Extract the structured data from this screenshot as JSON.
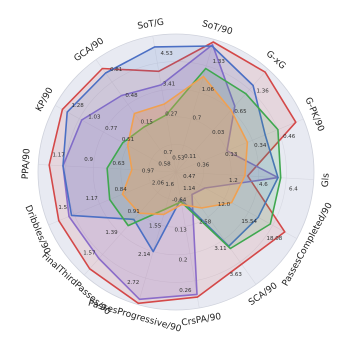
{
  "chart_data": {
    "type": "radar",
    "axes": [
      "SoT/90",
      "G-xG",
      "G-PK/90",
      "Gls",
      "PassesCompleted/90",
      "SCA/90",
      "CrsPA/90",
      "PassesProgressive/90",
      "FinalThirdPasses/90",
      "Dribbles/90",
      "PPA/90",
      "KP/90",
      "GCA/90",
      "SoT/G"
    ],
    "rmax": 5,
    "grid": true,
    "axis_ticks": [
      [
        "0.7",
        "1.06",
        "1.33"
      ],
      [
        "0.03",
        "0.65",
        "1.36"
      ],
      [
        "0.13",
        "0.34",
        "0.46"
      ],
      [
        "1.2",
        "4.6",
        "6.4"
      ],
      [
        "12.0",
        "15.54",
        "18.08"
      ],
      [
        "2.58",
        "3.11",
        "3.63"
      ],
      [
        "0.13",
        "0.2",
        "0.26"
      ],
      [
        "1.55",
        "2.14",
        "2.72"
      ],
      [
        "0.91",
        "1.39",
        "1.57"
      ],
      [
        "0.84",
        "1.17",
        "1.5"
      ],
      [
        "0.63",
        "0.9",
        "1.17"
      ],
      [
        "0.51",
        "0.77",
        "1.03",
        "1.28"
      ],
      [
        "0.15",
        "0.48",
        "0.81"
      ],
      [
        "0.27",
        "3.41",
        "4.53"
      ]
    ],
    "center_labels": [
      "0.53",
      "0.11",
      "0.36",
      "0.47",
      "1.14",
      "-0.64",
      "1.6",
      "2.06",
      "0.97",
      "0.58",
      "0.7"
    ],
    "series": [
      {
        "values": [
          4.9,
          4.85,
          4.7,
          2.6,
          4.5,
          4.1,
          4.6,
          4.95,
          4.7,
          4.6,
          4.6,
          4.7,
          4.6,
          3.7
        ],
        "color": "#d44848",
        "fill": "rgba(212,72,72,0.12)"
      },
      {
        "values": [
          4.8,
          3.2,
          2.0,
          3.7,
          1.2,
          1.0,
          4.5,
          4.8,
          4.2,
          4.2,
          4.1,
          3.9,
          3.4,
          3.2
        ],
        "color": "#8b6cc9",
        "fill": "rgba(139,108,201,0.18)"
      },
      {
        "values": [
          4.75,
          4.2,
          3.5,
          3.7,
          3.4,
          3.3,
          1.0,
          3.0,
          2.3,
          4.1,
          4.1,
          4.5,
          4.4,
          4.6
        ],
        "color": "#4b6fc4",
        "fill": "rgba(75,111,196,0.15)"
      },
      {
        "values": [
          3.9,
          3.8,
          4.0,
          3.8,
          3.9,
          3.4,
          1.1,
          1.4,
          2.6,
          2.6,
          2.5,
          2.2,
          2.0,
          2.1
        ],
        "color": "#3fa84f",
        "fill": "rgba(63,168,79,0.15)"
      },
      {
        "values": [
          3.6,
          3.0,
          2.8,
          2.5,
          2.3,
          1.6,
          1.2,
          1.6,
          2.0,
          2.1,
          1.6,
          2.0,
          2.6,
          2.5
        ],
        "color": "#f0a050",
        "fill": "rgba(240,160,80,0.35)"
      }
    ]
  }
}
